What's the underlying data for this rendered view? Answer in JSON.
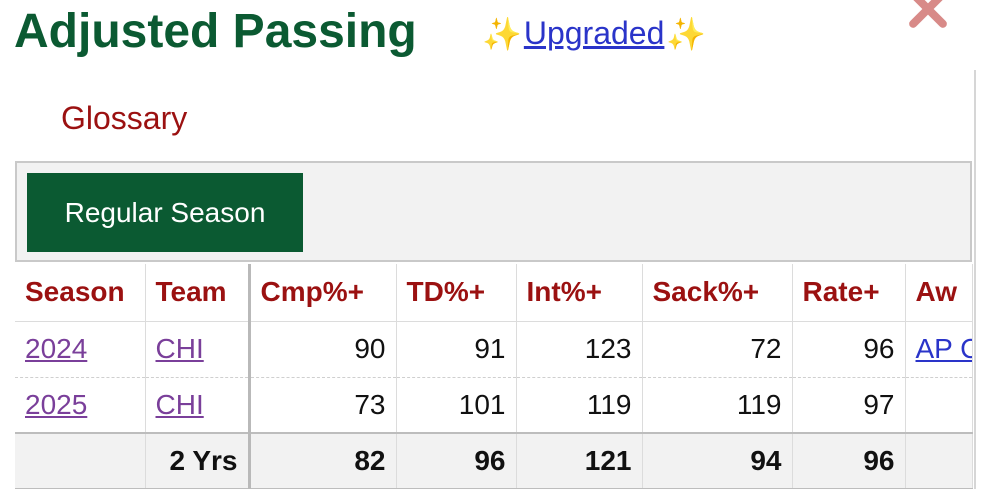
{
  "header": {
    "title": "Adjusted Passing",
    "sparkle": "✨",
    "upgraded_label": "Upgraded",
    "glossary_label": "Glossary"
  },
  "filter": {
    "regular_season_label": "Regular Season"
  },
  "table": {
    "columns": [
      "Season",
      "Team",
      "Cmp%+",
      "TD%+",
      "Int%+",
      "Sack%+",
      "Rate+",
      "Aw"
    ],
    "rows": [
      {
        "season": "2024",
        "team": "CHI",
        "cmp": "90",
        "td": "91",
        "int": "123",
        "sack": "72",
        "rate": "96",
        "awards": "AP C"
      },
      {
        "season": "2025",
        "team": "CHI",
        "cmp": "73",
        "td": "101",
        "int": "119",
        "sack": "119",
        "rate": "97",
        "awards": ""
      }
    ],
    "total": {
      "label": "2 Yrs",
      "cmp": "82",
      "td": "96",
      "int": "121",
      "sack": "94",
      "rate": "96"
    }
  },
  "colors": {
    "title_green": "#0b5a32",
    "header_red": "#9b1111",
    "link_purple": "#7a3f9a",
    "link_blue": "#2a34c9",
    "close_pink": "#d88a88"
  }
}
